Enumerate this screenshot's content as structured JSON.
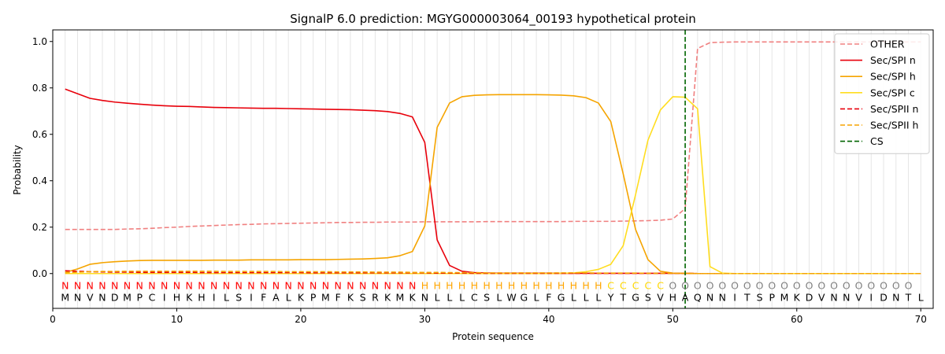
{
  "chart_data": {
    "type": "line",
    "title": "SignalP 6.0 prediction: MGYG000003064_00193 hypothetical protein",
    "xlabel": "Protein sequence",
    "ylabel": "Probability",
    "xlim": [
      0,
      71
    ],
    "ylim": [
      -0.15,
      1.05
    ],
    "x_ticks": [
      0,
      10,
      20,
      30,
      40,
      50,
      60,
      70
    ],
    "y_ticks": [
      0.0,
      0.2,
      0.4,
      0.6,
      0.8,
      1.0
    ],
    "x_tick_labels": [
      "0",
      "10",
      "20",
      "30",
      "40",
      "50",
      "60",
      "70"
    ],
    "y_tick_labels": [
      "0.0",
      "0.2",
      "0.4",
      "0.6",
      "0.8",
      "1.0"
    ],
    "grid": "vertical lines at each residue",
    "legend_position": "top-right",
    "sequence": "MNVNDMPCIHKHILSIFALKPMFKSRKMKNLLLCSLWGLFGLLLYTGSVHAQNNITSPMKDVNNVIDNTL",
    "labels": "NNNNNNNNNNNNNNNNNNNNNNNNNNNNNHHHHHHHHHHHHHHHCCCCCOOOOOOOOOOOOOOOOOOOO",
    "label_colors": {
      "N": "#ff0000",
      "H": "#ffa500",
      "C": "#ffd700",
      "O": "#808080"
    },
    "cleavage_site": 51,
    "series": [
      {
        "name": "OTHER",
        "color": "#f08080",
        "dash": true,
        "values": [
          0.19,
          0.19,
          0.19,
          0.19,
          0.19,
          0.192,
          0.193,
          0.195,
          0.198,
          0.2,
          0.203,
          0.205,
          0.207,
          0.209,
          0.211,
          0.212,
          0.214,
          0.215,
          0.216,
          0.217,
          0.218,
          0.219,
          0.22,
          0.22,
          0.221,
          0.221,
          0.222,
          0.222,
          0.222,
          0.223,
          0.223,
          0.223,
          0.223,
          0.223,
          0.224,
          0.224,
          0.224,
          0.224,
          0.224,
          0.224,
          0.224,
          0.225,
          0.225,
          0.225,
          0.225,
          0.226,
          0.227,
          0.228,
          0.23,
          0.235,
          0.28,
          0.97,
          0.995,
          0.997,
          0.998,
          0.998,
          0.998,
          0.998,
          0.998,
          0.998,
          0.998,
          0.998,
          0.998,
          0.998,
          0.998,
          0.998,
          0.998,
          0.998,
          0.998,
          0.998
        ]
      },
      {
        "name": "Sec/SPI n",
        "color": "#e8000b",
        "dash": false,
        "values": [
          0.795,
          0.775,
          0.755,
          0.746,
          0.739,
          0.734,
          0.73,
          0.726,
          0.723,
          0.721,
          0.72,
          0.718,
          0.716,
          0.715,
          0.714,
          0.713,
          0.712,
          0.712,
          0.711,
          0.71,
          0.709,
          0.708,
          0.707,
          0.706,
          0.704,
          0.702,
          0.698,
          0.69,
          0.675,
          0.565,
          0.145,
          0.035,
          0.01,
          0.004,
          0.002,
          0.001,
          0.001,
          0.001,
          0.001,
          0.001,
          0.001,
          0.001,
          0.001,
          0.001,
          0.001,
          0.001,
          0.001,
          0.001,
          0.001,
          0.001,
          0.001,
          0,
          0,
          0,
          0,
          0,
          0,
          0,
          0,
          0,
          0,
          0,
          0,
          0,
          0,
          0,
          0,
          0,
          0,
          0
        ]
      },
      {
        "name": "Sec/SPI h",
        "color": "#f5a400",
        "dash": false,
        "values": [
          0.005,
          0.02,
          0.04,
          0.047,
          0.051,
          0.054,
          0.056,
          0.057,
          0.057,
          0.057,
          0.057,
          0.057,
          0.058,
          0.058,
          0.058,
          0.059,
          0.059,
          0.059,
          0.059,
          0.06,
          0.06,
          0.06,
          0.061,
          0.062,
          0.063,
          0.065,
          0.068,
          0.077,
          0.095,
          0.205,
          0.63,
          0.735,
          0.762,
          0.768,
          0.77,
          0.771,
          0.771,
          0.771,
          0.771,
          0.77,
          0.769,
          0.766,
          0.758,
          0.735,
          0.655,
          0.43,
          0.19,
          0.06,
          0.01,
          0.002,
          0.001,
          0,
          0,
          0,
          0,
          0,
          0,
          0,
          0,
          0,
          0,
          0,
          0,
          0,
          0,
          0,
          0,
          0,
          0,
          0
        ]
      },
      {
        "name": "Sec/SPI c",
        "color": "#ffdd1f",
        "dash": false,
        "values": [
          0,
          0,
          0,
          0,
          0,
          0,
          0,
          0,
          0,
          0,
          0,
          0,
          0,
          0,
          0,
          0,
          0,
          0,
          0,
          0,
          0,
          0,
          0,
          0,
          0,
          0,
          0,
          0,
          0,
          0,
          0,
          0,
          0,
          0,
          0,
          0,
          0,
          0,
          0,
          0,
          0.001,
          0.003,
          0.008,
          0.018,
          0.04,
          0.12,
          0.34,
          0.575,
          0.705,
          0.762,
          0.76,
          0.71,
          0.03,
          0.002,
          0,
          0,
          0,
          0,
          0,
          0,
          0,
          0,
          0,
          0,
          0,
          0,
          0,
          0,
          0,
          0
        ]
      },
      {
        "name": "Sec/SPII n",
        "color": "#e8000b",
        "dash": true,
        "values": [
          0.012,
          0.01,
          0.008,
          0.007,
          0.006,
          0.006,
          0.005,
          0.005,
          0.005,
          0.005,
          0.005,
          0.004,
          0.004,
          0.004,
          0.004,
          0.004,
          0.004,
          0.004,
          0.004,
          0.004,
          0.003,
          0.003,
          0.003,
          0.003,
          0.003,
          0.003,
          0.003,
          0.003,
          0.003,
          0.003,
          0.002,
          0.002,
          0.002,
          0.001,
          0.001,
          0.001,
          0.001,
          0.001,
          0.001,
          0.001,
          0.001,
          0.001,
          0.001,
          0.001,
          0.001,
          0.001,
          0.001,
          0.001,
          0.001,
          0.001,
          0.001,
          0,
          0,
          0,
          0,
          0,
          0,
          0,
          0,
          0,
          0,
          0,
          0,
          0,
          0,
          0,
          0,
          0,
          0,
          0
        ]
      },
      {
        "name": "Sec/SPII h",
        "color": "#f5a400",
        "dash": true,
        "values": [
          0.003,
          0.006,
          0.008,
          0.009,
          0.009,
          0.01,
          0.01,
          0.01,
          0.01,
          0.01,
          0.01,
          0.01,
          0.01,
          0.009,
          0.009,
          0.009,
          0.009,
          0.009,
          0.008,
          0.008,
          0.008,
          0.008,
          0.007,
          0.007,
          0.007,
          0.006,
          0.006,
          0.006,
          0.005,
          0.005,
          0.005,
          0.004,
          0.004,
          0.004,
          0.003,
          0.003,
          0.003,
          0.003,
          0.003,
          0.003,
          0.003,
          0.003,
          0.003,
          0.002,
          0.002,
          0.002,
          0.002,
          0.001,
          0.001,
          0.001,
          0.001,
          0,
          0,
          0,
          0,
          0,
          0,
          0,
          0,
          0,
          0,
          0,
          0,
          0,
          0,
          0,
          0,
          0,
          0,
          0
        ]
      }
    ],
    "legend": [
      {
        "name": "OTHER",
        "color": "#f08080",
        "dash": true
      },
      {
        "name": "Sec/SPI n",
        "color": "#e8000b",
        "dash": false
      },
      {
        "name": "Sec/SPI h",
        "color": "#f5a400",
        "dash": false
      },
      {
        "name": "Sec/SPI c",
        "color": "#ffdd1f",
        "dash": false
      },
      {
        "name": "Sec/SPII n",
        "color": "#e8000b",
        "dash": true
      },
      {
        "name": "Sec/SPII h",
        "color": "#f5a400",
        "dash": true
      },
      {
        "name": "CS",
        "color": "#006400",
        "dash": true
      }
    ]
  }
}
